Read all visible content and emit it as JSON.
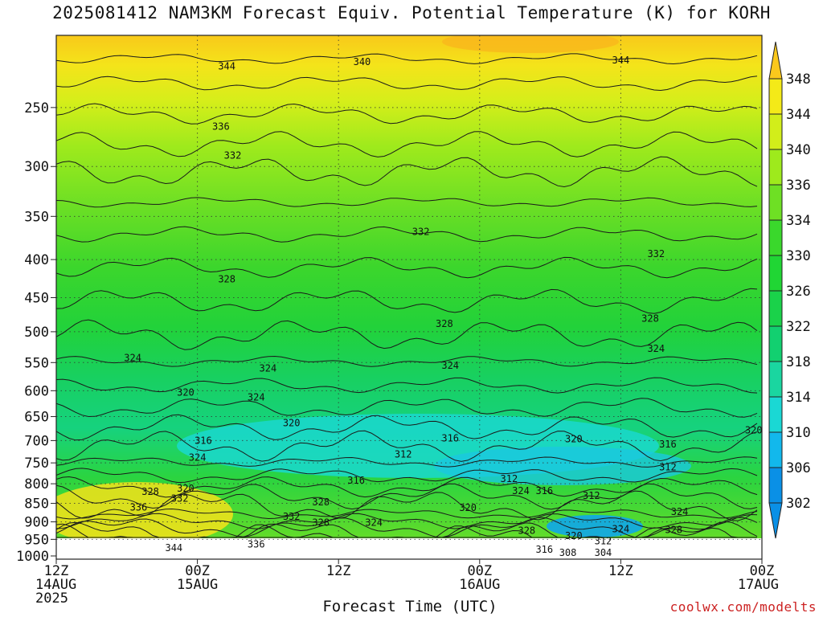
{
  "title": "2025081412 NAM3KM Forecast Equiv. Potential Temperature (K) for KORH",
  "xlabel": "Forecast Time (UTC)",
  "credit": "coolwx.com/modelts",
  "colors": {
    "ground": "#9b4a26",
    "c302": "#0a90e6",
    "c306": "#12b8ec",
    "c310": "#1ad8d4",
    "c314": "#1ad6a0",
    "c318": "#12d070",
    "c322": "#1ad24a",
    "c326": "#20d634",
    "c330": "#3ad82c",
    "c334": "#6ee024",
    "c336": "#9eea1c",
    "c340": "#d2ee1a",
    "c344": "#f4ea18",
    "c348": "#fbc81c"
  },
  "chart_data": {
    "type": "heatmap",
    "title": "2025081412 NAM3KM Forecast Equiv. Potential Temperature (K) for KORH",
    "xlabel": "Forecast Time (UTC)",
    "ylabel": "",
    "x_ticks": [
      {
        "value": 0,
        "lines": [
          "12Z",
          "14AUG",
          "2025"
        ]
      },
      {
        "value": 12,
        "lines": [
          "00Z",
          "15AUG"
        ]
      },
      {
        "value": 24,
        "lines": [
          "12Z"
        ]
      },
      {
        "value": 36,
        "lines": [
          "00Z",
          "16AUG"
        ]
      },
      {
        "value": 48,
        "lines": [
          "12Z"
        ]
      },
      {
        "value": 60,
        "lines": [
          "00Z",
          "17AUG"
        ]
      }
    ],
    "xlim": [
      0,
      60
    ],
    "y_ticks": [
      250,
      300,
      350,
      400,
      450,
      500,
      550,
      600,
      650,
      700,
      750,
      800,
      850,
      900,
      950,
      1000
    ],
    "ylim": [
      200,
      1010
    ],
    "y_scale": "log",
    "y_reversed": true,
    "grid": true,
    "colorbar": {
      "levels": [
        348,
        344,
        340,
        336,
        334,
        330,
        326,
        322,
        318,
        314,
        310,
        306,
        302
      ],
      "label_levels": [
        "348",
        "344",
        "340",
        "336",
        "334",
        "330",
        "326",
        "322",
        "318",
        "314",
        "310",
        "306",
        "302"
      ]
    },
    "contour_labels": [
      {
        "text": "344",
        "x": 14.5,
        "p": 220
      },
      {
        "text": "340",
        "x": 26,
        "p": 217
      },
      {
        "text": "344",
        "x": 48,
        "p": 216
      },
      {
        "text": "336",
        "x": 14,
        "p": 265
      },
      {
        "text": "332",
        "x": 15,
        "p": 290
      },
      {
        "text": "332",
        "x": 31,
        "p": 367
      },
      {
        "text": "332",
        "x": 51,
        "p": 393
      },
      {
        "text": "328",
        "x": 14.5,
        "p": 425
      },
      {
        "text": "328",
        "x": 33,
        "p": 488
      },
      {
        "text": "328",
        "x": 50.5,
        "p": 480
      },
      {
        "text": "324",
        "x": 6.5,
        "p": 542
      },
      {
        "text": "324",
        "x": 18,
        "p": 560
      },
      {
        "text": "324",
        "x": 33.5,
        "p": 555
      },
      {
        "text": "324",
        "x": 51,
        "p": 527
      },
      {
        "text": "320",
        "x": 11,
        "p": 603
      },
      {
        "text": "324",
        "x": 17,
        "p": 612
      },
      {
        "text": "320",
        "x": 20,
        "p": 663
      },
      {
        "text": "316",
        "x": 12.5,
        "p": 700
      },
      {
        "text": "316",
        "x": 33.5,
        "p": 695
      },
      {
        "text": "320",
        "x": 44,
        "p": 697
      },
      {
        "text": "316",
        "x": 52,
        "p": 708
      },
      {
        "text": "320",
        "x": 59.3,
        "p": 678
      },
      {
        "text": "324",
        "x": 12,
        "p": 738
      },
      {
        "text": "312",
        "x": 29.5,
        "p": 730
      },
      {
        "text": "312",
        "x": 52,
        "p": 760
      },
      {
        "text": "316",
        "x": 25.5,
        "p": 792
      },
      {
        "text": "312",
        "x": 38.5,
        "p": 788
      },
      {
        "text": "328",
        "x": 8,
        "p": 820
      },
      {
        "text": "320",
        "x": 11,
        "p": 812
      },
      {
        "text": "332",
        "x": 10.5,
        "p": 837
      },
      {
        "text": "336",
        "x": 7,
        "p": 860
      },
      {
        "text": "324",
        "x": 39.5,
        "p": 818
      },
      {
        "text": "316",
        "x": 41.5,
        "p": 818
      },
      {
        "text": "312",
        "x": 45.5,
        "p": 830
      },
      {
        "text": "328",
        "x": 22.5,
        "p": 847
      },
      {
        "text": "320",
        "x": 35,
        "p": 862
      },
      {
        "text": "324",
        "x": 53,
        "p": 872
      },
      {
        "text": "332",
        "x": 20,
        "p": 885
      },
      {
        "text": "328",
        "x": 22.5,
        "p": 902
      },
      {
        "text": "324",
        "x": 27,
        "p": 902
      },
      {
        "text": "328",
        "x": 40,
        "p": 925
      },
      {
        "text": "324",
        "x": 48,
        "p": 920
      },
      {
        "text": "328",
        "x": 52.5,
        "p": 922
      },
      {
        "text": "320",
        "x": 44,
        "p": 940
      },
      {
        "text": "312",
        "x": 46.5,
        "p": 955
      },
      {
        "text": "344",
        "x": 10,
        "p": 975
      },
      {
        "text": "336",
        "x": 17,
        "p": 965
      },
      {
        "text": "316",
        "x": 41.5,
        "p": 980
      },
      {
        "text": "308",
        "x": 43.5,
        "p": 990
      },
      {
        "text": "304",
        "x": 46.5,
        "p": 990
      }
    ]
  }
}
